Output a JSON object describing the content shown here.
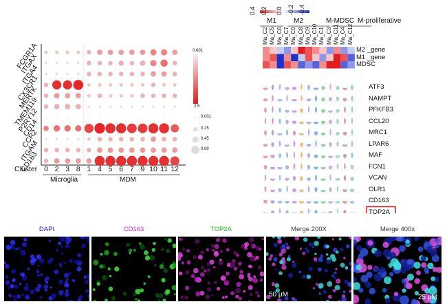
{
  "dotplot": {
    "genes": [
      "FCGR1A",
      "ITGAX",
      "ITGA4",
      "CX3CR1",
      "MERTK",
      "TMEM119",
      "P2RY12",
      "CD14",
      "CCR2",
      "ITGAM",
      "CD163"
    ],
    "cluster_label": "Cluster",
    "clusters": [
      "0",
      "2",
      "3",
      "8",
      "1",
      "4",
      "5",
      "6",
      "7",
      "9",
      "10",
      "11",
      "12"
    ],
    "group_microglia": "Microglia",
    "group_mdm": "MDM",
    "colorbar_max": "0.001",
    "colorbar_min": "2.5",
    "size_legend": [
      "0.001",
      "0.25",
      "0.45",
      "0.89"
    ]
  },
  "chart_data": {
    "type": "scatter",
    "title": "",
    "xlabel": "Cluster",
    "ylabel": "",
    "x_categories": [
      "0",
      "2",
      "3",
      "8",
      "1",
      "4",
      "5",
      "6",
      "7",
      "9",
      "10",
      "11",
      "12"
    ],
    "y_categories": [
      "FCGR1A",
      "ITGAX",
      "ITGA4",
      "CX3CR1",
      "MERTK",
      "TMEM119",
      "P2RY12",
      "CD14",
      "CCR2",
      "ITGAM",
      "CD163"
    ],
    "size_matrix": [
      [
        0.2,
        0.2,
        0.2,
        0.2,
        0.3,
        0.4,
        0.4,
        0.4,
        0.4,
        0.4,
        0.5,
        0.5,
        0.4
      ],
      [
        0.1,
        0.1,
        0.1,
        0.1,
        0.3,
        0.3,
        0.3,
        0.4,
        0.3,
        0.4,
        0.5,
        0.6,
        0.3
      ],
      [
        0.1,
        0.1,
        0.1,
        0.1,
        0.3,
        0.3,
        0.3,
        0.3,
        0.3,
        0.3,
        0.4,
        0.4,
        0.3
      ],
      [
        0.3,
        0.8,
        0.8,
        0.9,
        0.2,
        0.2,
        0.2,
        0.2,
        0.2,
        0.2,
        0.3,
        0.2,
        0.2
      ],
      [
        0.3,
        0.4,
        0.4,
        0.4,
        0.2,
        0.3,
        0.2,
        0.2,
        0.2,
        0.3,
        0.3,
        0.3,
        0.3
      ],
      [
        0.3,
        0.4,
        0.4,
        0.4,
        0.1,
        0.1,
        0.1,
        0.1,
        0.1,
        0.1,
        0.1,
        0.1,
        0.1
      ],
      [
        0.0,
        0.0,
        0.0,
        0.0,
        0.0,
        0.0,
        0.0,
        0.0,
        0.0,
        0.0,
        0.0,
        0.0,
        0.0
      ],
      [
        0.4,
        0.5,
        0.5,
        0.5,
        0.8,
        0.95,
        0.9,
        0.9,
        0.85,
        0.85,
        0.9,
        0.9,
        0.7
      ],
      [
        0.1,
        0.1,
        0.1,
        0.1,
        0.2,
        0.3,
        0.3,
        0.3,
        0.3,
        0.3,
        0.4,
        0.3,
        0.3
      ],
      [
        0.3,
        0.3,
        0.3,
        0.3,
        0.3,
        0.4,
        0.4,
        0.4,
        0.4,
        0.4,
        0.4,
        0.4,
        0.4
      ],
      [
        0.3,
        0.4,
        0.4,
        0.4,
        0.4,
        0.9,
        0.9,
        0.9,
        0.9,
        0.9,
        0.9,
        0.9,
        0.8
      ]
    ],
    "color_matrix": [
      [
        0.2,
        0.2,
        0.2,
        0.2,
        0.3,
        0.4,
        0.4,
        0.4,
        0.4,
        0.4,
        0.5,
        0.5,
        0.4
      ],
      [
        0.1,
        0.1,
        0.1,
        0.1,
        0.3,
        0.3,
        0.3,
        0.3,
        0.3,
        0.3,
        0.5,
        0.6,
        0.3
      ],
      [
        0.1,
        0.1,
        0.1,
        0.1,
        0.3,
        0.3,
        0.3,
        0.3,
        0.3,
        0.3,
        0.4,
        0.4,
        0.3
      ],
      [
        0.3,
        0.9,
        0.9,
        0.95,
        0.2,
        0.2,
        0.2,
        0.2,
        0.2,
        0.2,
        0.3,
        0.2,
        0.2
      ],
      [
        0.3,
        0.4,
        0.4,
        0.4,
        0.2,
        0.3,
        0.2,
        0.2,
        0.2,
        0.3,
        0.3,
        0.3,
        0.3
      ],
      [
        0.3,
        0.3,
        0.3,
        0.3,
        0.1,
        0.1,
        0.1,
        0.1,
        0.1,
        0.1,
        0.1,
        0.1,
        0.1
      ],
      [
        0.0,
        0.0,
        0.0,
        0.0,
        0.0,
        0.0,
        0.0,
        0.0,
        0.0,
        0.0,
        0.0,
        0.0,
        0.0
      ],
      [
        0.5,
        0.6,
        0.6,
        0.6,
        0.8,
        0.95,
        0.9,
        0.9,
        0.85,
        0.85,
        0.9,
        0.9,
        0.7
      ],
      [
        0.1,
        0.1,
        0.1,
        0.1,
        0.2,
        0.3,
        0.3,
        0.3,
        0.3,
        0.3,
        0.4,
        0.3,
        0.3
      ],
      [
        0.3,
        0.3,
        0.3,
        0.3,
        0.3,
        0.4,
        0.4,
        0.4,
        0.4,
        0.4,
        0.4,
        0.4,
        0.4
      ],
      [
        0.3,
        0.4,
        0.4,
        0.4,
        0.4,
        0.9,
        0.9,
        0.9,
        0.9,
        0.9,
        0.9,
        0.9,
        0.8
      ]
    ],
    "colors": {
      "high": "#e41a1c",
      "low": "#f2f2f2"
    }
  },
  "heatmap": {
    "scale_ticks": [
      "0.4",
      "0.2",
      "0.0",
      "-0.2",
      "-0.4"
    ],
    "groups": [
      "M1",
      "M2",
      "M-MDSC",
      "M-proliferative"
    ],
    "columns": [
      "Ma_C2",
      "Ma_C5",
      "Ma_C6",
      "Ma_C7",
      "Ma_C0",
      "Ma_C8",
      "Ma_C9",
      "Ma_C10",
      "Ma_C1",
      "Ma_C3",
      "Ma_C11",
      "Ma_C4",
      "Ma_C12"
    ],
    "rows": [
      "M2 _gene",
      "M1 _gene",
      "MDSC"
    ],
    "values": [
      [
        0.2,
        0.1,
        -0.1,
        -0.2,
        0.1,
        0.4,
        0.3,
        0.2,
        0.1,
        -0.2,
        0.2,
        -0.2,
        -0.1
      ],
      [
        0.2,
        0.3,
        -0.4,
        0.2,
        -0.4,
        -0.1,
        0.3,
        0.1,
        -0.2,
        0.1,
        0.4,
        0.3,
        -0.3
      ],
      [
        0.3,
        0.2,
        -0.4,
        0.3,
        0.2,
        -0.3,
        -0.2,
        -0.3,
        0.2,
        0.4,
        0.4,
        -0.3,
        -0.2
      ]
    ],
    "colors": {
      "pos": "#e41a1c",
      "neg": "#1f2fd1"
    }
  },
  "violin": {
    "genes": [
      "ATF3",
      "NAMPT",
      "PFKFB3",
      "CCL20",
      "MRC1",
      "LPAR6",
      "MAF",
      "FCN1",
      "VCAN",
      "OLR1",
      "CD163",
      "TOP2A"
    ],
    "highlight": "TOP2A",
    "colors": [
      "#e8a0a8",
      "#c6a0d8",
      "#9cc3e6",
      "#a8b8e0",
      "#d99ad4",
      "#e8c080",
      "#b0b0e8",
      "#80b8e0",
      "#90d0a0",
      "#c8b0e0",
      "#a8d8c0",
      "#d0a0a0",
      "#a0c8e8"
    ]
  },
  "micrographs": [
    {
      "label": "DAPI",
      "color": "#1a1ae0"
    },
    {
      "label": "CD163",
      "color": "#e020e0"
    },
    {
      "label": "TOP2A",
      "color": "#20c020"
    },
    {
      "label": "Merge 200X",
      "color": "#333333",
      "scale": "50 μM"
    },
    {
      "label": "Merge 400x",
      "color": "#333333",
      "scale": "25 μM"
    }
  ]
}
